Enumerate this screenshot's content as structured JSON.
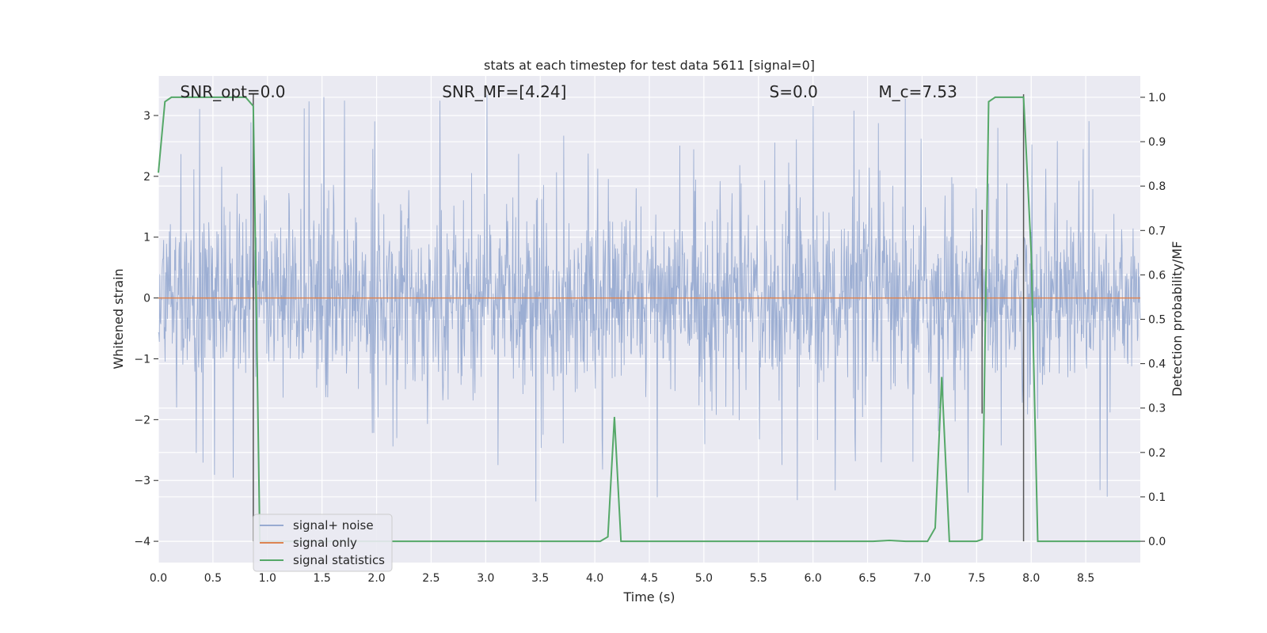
{
  "chart_data": {
    "type": "line",
    "title": "stats at each timestep for test data 5611 [signal=0]",
    "xlabel": "Time (s)",
    "ylabel_left": "Whitened strain",
    "ylabel_right": "Detection probability/MF",
    "xlim": [
      0.0,
      9.0
    ],
    "ylim_left": [
      -4.35,
      3.65
    ],
    "ylim_right": [
      -0.048,
      1.048
    ],
    "x_ticks": [
      0.0,
      0.5,
      1.0,
      1.5,
      2.0,
      2.5,
      3.0,
      3.5,
      4.0,
      4.5,
      5.0,
      5.5,
      6.0,
      6.5,
      7.0,
      7.5,
      8.0,
      8.5
    ],
    "x_tick_labels": [
      "0.0",
      "0.5",
      "1.0",
      "1.5",
      "2.0",
      "2.5",
      "3.0",
      "3.5",
      "4.0",
      "4.5",
      "5.0",
      "5.5",
      "6.0",
      "6.5",
      "7.0",
      "7.5",
      "8.0",
      "8.5"
    ],
    "y_left_ticks": [
      3,
      2,
      1,
      0,
      -1,
      -2,
      -3,
      -4
    ],
    "y_left_tick_labels": [
      "3",
      "2",
      "1",
      "0",
      "−1",
      "−2",
      "−3",
      "−4"
    ],
    "y_right_ticks": [
      1.0,
      0.9,
      0.8,
      0.7,
      0.6,
      0.5,
      0.4,
      0.3,
      0.2,
      0.1,
      0.0
    ],
    "y_right_tick_labels": [
      "1.0",
      "0.9",
      "0.8",
      "0.7",
      "0.6",
      "0.5",
      "0.4",
      "0.3",
      "0.2",
      "0.1",
      "0.0"
    ],
    "grid": true,
    "legend_placement": "lower-left",
    "annotations": [
      {
        "text": "SNR_opt=0.0",
        "x": 0.2
      },
      {
        "text": "SNR_MF=[4.24]",
        "x": 2.6
      },
      {
        "text": "S=0.0",
        "x": 5.6
      },
      {
        "text": "M_c=7.53",
        "x": 6.6
      }
    ],
    "series": [
      {
        "name": "signal+ noise",
        "axis": "left",
        "color": "#98abd1",
        "envelope": {
          "typical_abs": 1.8,
          "peak_max": 3.35,
          "peak_min": -4.0,
          "samples": 2048
        }
      },
      {
        "name": "signal only",
        "axis": "left",
        "color": "#dd8452",
        "x": [
          0.0,
          9.0
        ],
        "y": [
          0.0,
          0.0
        ]
      },
      {
        "name": "signal statistics",
        "axis": "right",
        "color": "#55a868",
        "x": [
          0.0,
          0.06,
          0.12,
          0.8,
          0.87,
          0.93,
          1.0,
          4.05,
          4.12,
          4.18,
          4.24,
          4.3,
          6.55,
          6.7,
          6.85,
          7.05,
          7.12,
          7.18,
          7.25,
          7.32,
          7.5,
          7.55,
          7.61,
          7.67,
          7.74,
          7.93,
          8.0,
          8.06,
          8.12,
          8.5,
          9.0
        ],
        "y": [
          0.83,
          0.99,
          1.0,
          1.0,
          0.98,
          0.0,
          0.0,
          0.0,
          0.01,
          0.28,
          0.0,
          0.0,
          0.0,
          0.002,
          0.0,
          0.0,
          0.03,
          0.37,
          0.0,
          0.0,
          0.0,
          0.004,
          0.99,
          1.0,
          1.0,
          1.0,
          0.65,
          0.0,
          0.0,
          0.0,
          0.0
        ]
      }
    ],
    "vertical_markers": [
      {
        "x": 0.87,
        "y_top": 3.35,
        "y_bottom": -4.0
      },
      {
        "x": 7.55,
        "y_top": 1.45,
        "y_bottom": -1.9
      },
      {
        "x": 7.93,
        "y_top": 3.35,
        "y_bottom": -4.0
      }
    ]
  }
}
